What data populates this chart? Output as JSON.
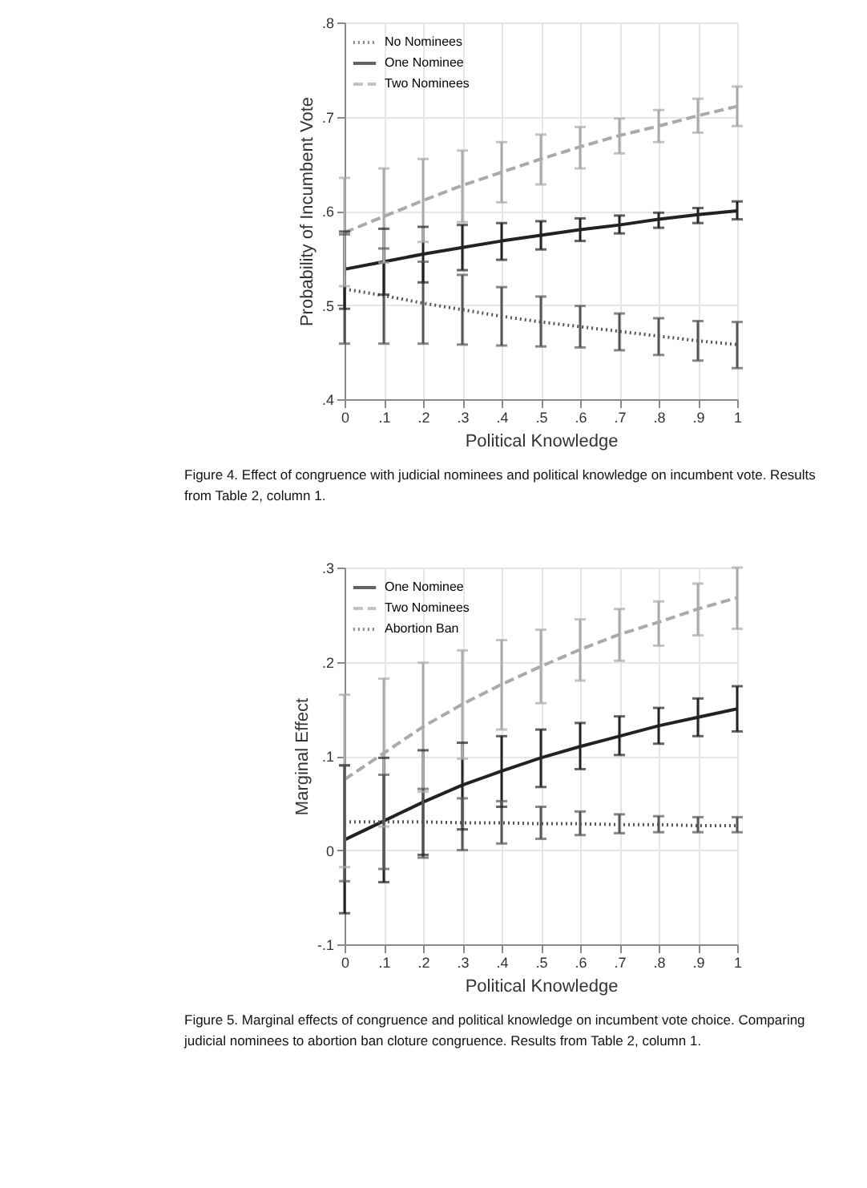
{
  "chart_data": [
    {
      "type": "line",
      "xlabel": "Political Knowledge",
      "ylabel": "Probability of Incumbent Vote",
      "x": [
        0,
        0.1,
        0.2,
        0.3,
        0.4,
        0.5,
        0.6,
        0.7,
        0.8,
        0.9,
        1
      ],
      "xlim": [
        0,
        1
      ],
      "ylim": [
        0.4,
        0.8
      ],
      "xticks": [
        0,
        {
          "value": 0.1,
          "label": ".1"
        },
        {
          "value": 0.2,
          "label": ".2"
        },
        {
          "value": 0.3,
          "label": ".3"
        },
        {
          "value": 0.4,
          "label": ".4"
        },
        {
          "value": 0.5,
          "label": ".5"
        },
        {
          "value": 0.6,
          "label": ".6"
        },
        {
          "value": 0.7,
          "label": ".7"
        },
        {
          "value": 0.8,
          "label": ".8"
        },
        {
          "value": 0.9,
          "label": ".9"
        },
        1
      ],
      "yticks": [
        {
          "value": 0.4,
          "label": ".4"
        },
        {
          "value": 0.5,
          "label": ".5"
        },
        {
          "value": 0.6,
          "label": ".6"
        },
        {
          "value": 0.7,
          "label": ".7"
        },
        {
          "value": 0.8,
          "label": ".8"
        }
      ],
      "grid": true,
      "legend": "top left",
      "marker": "none",
      "series": [
        {
          "name": "No Nominees",
          "color": "#555555",
          "line_style": "dotted",
          "values": [
            0.517,
            0.51,
            0.502,
            0.495,
            0.488,
            0.482,
            0.477,
            0.472,
            0.467,
            0.462,
            0.458
          ],
          "errors": [
            [
              0.459,
              0.575
            ],
            [
              0.459,
              0.56
            ],
            [
              0.459,
              0.546
            ],
            [
              0.458,
              0.532
            ],
            [
              0.457,
              0.519
            ],
            [
              0.456,
              0.509
            ],
            [
              0.455,
              0.499
            ],
            [
              0.452,
              0.491
            ],
            [
              0.447,
              0.486
            ],
            [
              0.441,
              0.483
            ],
            [
              0.433,
              0.482
            ]
          ]
        },
        {
          "name": "One Nominee",
          "color": "#222222",
          "line_style": "solid",
          "values": [
            0.538,
            0.546,
            0.554,
            0.561,
            0.568,
            0.574,
            0.58,
            0.585,
            0.591,
            0.596,
            0.6
          ],
          "errors": [
            [
              0.496,
              0.578
            ],
            [
              0.511,
              0.581
            ],
            [
              0.524,
              0.583
            ],
            [
              0.537,
              0.585
            ],
            [
              0.548,
              0.587
            ],
            [
              0.559,
              0.589
            ],
            [
              0.568,
              0.592
            ],
            [
              0.576,
              0.595
            ],
            [
              0.582,
              0.598
            ],
            [
              0.587,
              0.603
            ],
            [
              0.591,
              0.61
            ]
          ]
        },
        {
          "name": "Two  Nominees",
          "color": "#aaaaaa",
          "line_style": "dashed",
          "values": [
            0.577,
            0.594,
            0.611,
            0.627,
            0.641,
            0.655,
            0.668,
            0.68,
            0.69,
            0.701,
            0.711
          ],
          "errors": [
            [
              0.52,
              0.635
            ],
            [
              0.545,
              0.645
            ],
            [
              0.567,
              0.655
            ],
            [
              0.588,
              0.664
            ],
            [
              0.609,
              0.673
            ],
            [
              0.628,
              0.681
            ],
            [
              0.645,
              0.689
            ],
            [
              0.661,
              0.698
            ],
            [
              0.673,
              0.707
            ],
            [
              0.683,
              0.719
            ],
            [
              0.69,
              0.732
            ]
          ]
        }
      ],
      "annotations": [
        "Figure 4. Effect of congruence with judicial nominees and political knowledge on incumbent vote. Results from Table 2, column 1."
      ]
    },
    {
      "type": "line",
      "xlabel": "Political Knowledge",
      "ylabel": "Marginal Effect",
      "x": [
        0,
        0.1,
        0.2,
        0.3,
        0.4,
        0.5,
        0.6,
        0.7,
        0.8,
        0.9,
        1
      ],
      "xlim": [
        0,
        1
      ],
      "ylim": [
        -0.1,
        0.3
      ],
      "xticks": [
        0,
        {
          "value": 0.1,
          "label": ".1"
        },
        {
          "value": 0.2,
          "label": ".2"
        },
        {
          "value": 0.3,
          "label": ".3"
        },
        {
          "value": 0.4,
          "label": ".4"
        },
        {
          "value": 0.5,
          "label": ".5"
        },
        {
          "value": 0.6,
          "label": ".6"
        },
        {
          "value": 0.7,
          "label": ".7"
        },
        {
          "value": 0.8,
          "label": ".8"
        },
        {
          "value": 0.9,
          "label": ".9"
        },
        1
      ],
      "yticks": [
        {
          "value": -0.1,
          "label": "-.1"
        },
        0,
        {
          "value": 0.1,
          "label": ".1"
        },
        {
          "value": 0.2,
          "label": ".2"
        },
        {
          "value": 0.3,
          "label": ".3"
        }
      ],
      "grid": true,
      "legend": "top left",
      "marker": "none",
      "series": [
        {
          "name": "One Nominee",
          "color": "#222222",
          "line_style": "solid",
          "values": [
            0.011,
            0.031,
            0.051,
            0.069,
            0.084,
            0.098,
            0.11,
            0.121,
            0.132,
            0.141,
            0.15
          ],
          "errors": [
            [
              -0.067,
              0.09
            ],
            [
              -0.034,
              0.098
            ],
            [
              -0.005,
              0.106
            ],
            [
              0.022,
              0.114
            ],
            [
              0.046,
              0.121
            ],
            [
              0.067,
              0.128
            ],
            [
              0.086,
              0.135
            ],
            [
              0.101,
              0.142
            ],
            [
              0.113,
              0.151
            ],
            [
              0.121,
              0.161
            ],
            [
              0.126,
              0.174
            ]
          ]
        },
        {
          "name": "Two Nominees",
          "color": "#aaaaaa",
          "line_style": "dashed",
          "values": [
            0.075,
            0.103,
            0.131,
            0.155,
            0.176,
            0.195,
            0.213,
            0.229,
            0.242,
            0.256,
            0.268
          ],
          "errors": [
            [
              -0.018,
              0.165
            ],
            [
              0.025,
              0.182
            ],
            [
              0.062,
              0.199
            ],
            [
              0.097,
              0.212
            ],
            [
              0.128,
              0.223
            ],
            [
              0.156,
              0.234
            ],
            [
              0.18,
              0.245
            ],
            [
              0.201,
              0.256
            ],
            [
              0.217,
              0.264
            ],
            [
              0.228,
              0.283
            ],
            [
              0.235,
              0.3
            ]
          ]
        },
        {
          "name": "Abortion Ban",
          "color": "#555555",
          "line_style": "dotted",
          "values": [
            0.03,
            0.03,
            0.03,
            0.029,
            0.029,
            0.028,
            0.028,
            0.027,
            0.027,
            0.026,
            0.026
          ],
          "errors": [
            [
              -0.033,
              0.09
            ],
            [
              -0.02,
              0.08
            ],
            [
              -0.008,
              0.065
            ],
            [
              0.0,
              0.055
            ],
            [
              0.007,
              0.052
            ],
            [
              0.012,
              0.046
            ],
            [
              0.016,
              0.041
            ],
            [
              0.018,
              0.038
            ],
            [
              0.019,
              0.036
            ],
            [
              0.019,
              0.035
            ],
            [
              0.019,
              0.035
            ]
          ]
        }
      ],
      "annotations": [
        "Figure 5. Marginal effects of congruence and political knowledge on incumbent vote choice. Comparing judicial nominees to abortion ban cloture congruence. Results from Table 2, column 1."
      ]
    }
  ]
}
